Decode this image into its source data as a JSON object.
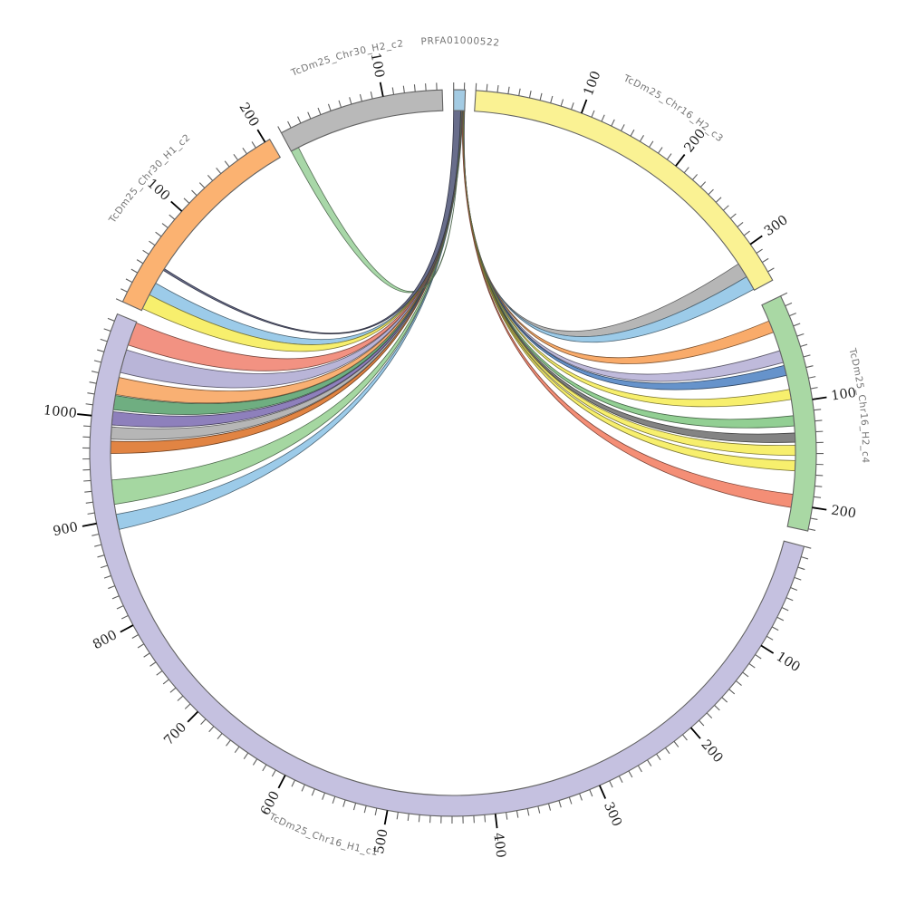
{
  "figure": {
    "title": "PRFA01000522",
    "background": "#ffffff",
    "tick_interval_minor": 10,
    "tick_interval_major": 100
  },
  "chart_data": {
    "type": "circos-chord",
    "title": "PRFA01000522",
    "description": "Circular synteny (chord) plot: contig PRFA01000522 aligned against six sequence segments; ribbons join the contig at top to alignment positions (units, ~kb) on each segment; ticks every 10 units, labels every 100.",
    "segments": [
      {
        "id": "prfa",
        "label": "PRFA01000522",
        "color": "#a3cbe3",
        "start_deg": 0.1,
        "end_deg": 1.95,
        "units": 11,
        "major_labels": []
      },
      {
        "id": "c3",
        "label": "TcDm25_Chr16_H2_c3",
        "color": "#faf293",
        "start_deg": 3.6,
        "end_deg": 61.6,
        "units": 339,
        "major_labels": [
          100,
          200,
          300
        ]
      },
      {
        "id": "c4",
        "label": "TcDm25_Chr16_H2_c4",
        "color": "#a9d8a4",
        "start_deg": 64.4,
        "end_deg": 102.4,
        "units": 222,
        "major_labels": [
          100,
          200
        ]
      },
      {
        "id": "c1",
        "label": "TcDm25_Chr16_H1_c1",
        "color": "#c5c1e0",
        "start_deg": 104.9,
        "end_deg": 292.5,
        "units": 1097,
        "major_labels": [
          100,
          200,
          300,
          400,
          500,
          600,
          700,
          800,
          900,
          1000
        ]
      },
      {
        "id": "or2",
        "label": "TcDm25_Chr30_H1_c2",
        "color": "#fbb271",
        "start_deg": 294.6,
        "end_deg": 329.7,
        "units": 205,
        "major_labels": [
          100,
          200
        ]
      },
      {
        "id": "gr2",
        "label": "TcDm25_Chr30_H2_c2",
        "color": "#b9b9b9",
        "start_deg": 331.8,
        "end_deg": 358.3,
        "units": 155,
        "major_labels": [
          100
        ]
      }
    ],
    "ribbons": [
      {
        "name": "gray-to-c3",
        "color": "#b4b4b4",
        "source": [
          10.83,
          11.0
        ],
        "target": "c3",
        "target_range": [
          309,
          324
        ]
      },
      {
        "name": "lightblue-to-c3",
        "color": "#99c9e8",
        "source": [
          10.65,
          10.83
        ],
        "target": "c3",
        "target_range": [
          324,
          338
        ]
      },
      {
        "name": "orange-to-c4",
        "color": "#f9a865",
        "source": [
          10.48,
          10.65
        ],
        "target": "c4",
        "target_range": [
          17,
          29
        ]
      },
      {
        "name": "lavender-to-c4",
        "color": "#bdb8da",
        "source": [
          10.3,
          10.48
        ],
        "target": "c4",
        "target_range": [
          48,
          60
        ]
      },
      {
        "name": "steelblue-to-c4",
        "color": "#618fc9",
        "source": [
          10.13,
          10.3
        ],
        "target": "c4",
        "target_range": [
          63,
          73
        ]
      },
      {
        "name": "yellow-to-c4-a",
        "color": "#f7ee68",
        "source": [
          9.96,
          10.13
        ],
        "target": "c4",
        "target_range": [
          87,
          97
        ]
      },
      {
        "name": "green-to-c4",
        "color": "#8ecd8f",
        "source": [
          9.78,
          9.96
        ],
        "target": "c4",
        "target_range": [
          113,
          123
        ]
      },
      {
        "name": "darkgray-to-c4",
        "color": "#7f7f7f",
        "source": [
          9.61,
          9.78
        ],
        "target": "c4",
        "target_range": [
          130,
          139
        ]
      },
      {
        "name": "yellow-to-c4-b",
        "color": "#f7ee68",
        "source": [
          9.44,
          9.61
        ],
        "target": "c4",
        "target_range": [
          142,
          152
        ]
      },
      {
        "name": "yellow-to-c4-c",
        "color": "#f7ee68",
        "source": [
          9.26,
          9.44
        ],
        "target": "c4",
        "target_range": [
          157,
          167
        ]
      },
      {
        "name": "salmon-to-c4",
        "color": "#f48a72",
        "source": [
          9.09,
          9.26
        ],
        "target": "c4",
        "target_range": [
          190,
          203
        ]
      },
      {
        "name": "skyblue-to-c1",
        "color": "#99c9e8",
        "source": [
          8.91,
          9.09
        ],
        "target": "c1",
        "target_range": [
          890,
          905
        ]
      },
      {
        "name": "lightgreen-to-c1",
        "color": "#a2d69e",
        "source": [
          8.74,
          8.91
        ],
        "target": "c1",
        "target_range": [
          915,
          939
        ]
      },
      {
        "name": "darkorange-to-c1",
        "color": "#e0803d",
        "source": [
          8.57,
          8.74
        ],
        "target": "c1",
        "target_range": [
          965,
          977
        ]
      },
      {
        "name": "gray-to-c1",
        "color": "#b4b4b4",
        "source": [
          8.39,
          8.57
        ],
        "target": "c1",
        "target_range": [
          979,
          991
        ]
      },
      {
        "name": "purple-to-c1",
        "color": "#8a7cba",
        "source": [
          8.22,
          8.39
        ],
        "target": "c1",
        "target_range": [
          993,
          1006
        ]
      },
      {
        "name": "seagreen-to-c1",
        "color": "#6aab7d",
        "source": [
          8.04,
          8.22
        ],
        "target": "c1",
        "target_range": [
          1008,
          1022
        ]
      },
      {
        "name": "orange-to-c1",
        "color": "#f9ad6e",
        "source": [
          7.87,
          8.04
        ],
        "target": "c1",
        "target_range": [
          1023,
          1040
        ]
      },
      {
        "name": "lavender-to-c1",
        "color": "#b7b3d7",
        "source": [
          7.7,
          7.87
        ],
        "target": "c1",
        "target_range": [
          1045,
          1068
        ]
      },
      {
        "name": "salmon-to-c1",
        "color": "#f28e7e",
        "source": [
          7.52,
          7.7
        ],
        "target": "c1",
        "target_range": [
          1073,
          1096
        ]
      },
      {
        "name": "lightblue-to-or2",
        "color": "#99c9e8",
        "source": [
          7.35,
          7.52
        ],
        "target": "or2",
        "target_range": [
          17,
          30
        ]
      },
      {
        "name": "yellow-to-or2",
        "color": "#f7ee68",
        "source": [
          7.17,
          7.35
        ],
        "target": "or2",
        "target_range": [
          2,
          17
        ]
      },
      {
        "name": "green-to-gr2",
        "color": "#a5d6a5",
        "source": [
          7.0,
          7.17
        ],
        "target": "gr2",
        "target_range": [
          0,
          8
        ]
      },
      {
        "name": "slate-to-or2",
        "color": "#636887",
        "source": [
          0.0,
          7.0
        ],
        "target": "or2",
        "target_range": [
          44.5,
          46.5
        ]
      }
    ]
  }
}
